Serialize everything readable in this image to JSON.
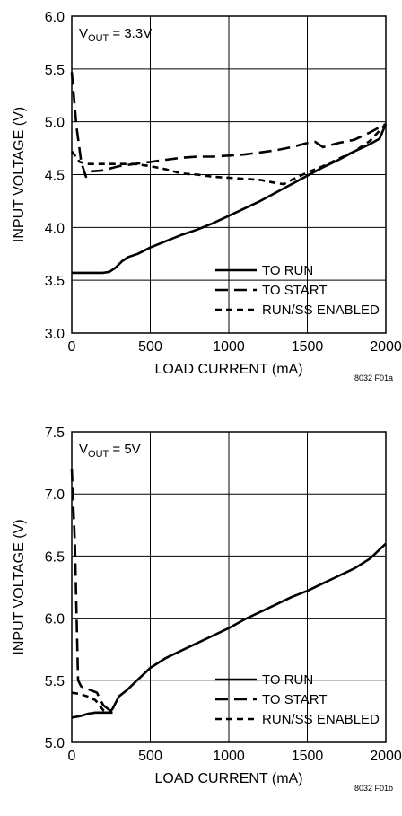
{
  "chart_data": [
    {
      "type": "line",
      "annotation": {
        "prefix": "V",
        "sub": "OUT",
        "suffix": " = 3.3V"
      },
      "xlabel": "LOAD CURRENT (mA)",
      "ylabel": "INPUT VOLTAGE (V)",
      "xlim": [
        0,
        2000
      ],
      "ylim": [
        3.0,
        6.0
      ],
      "x_ticks": [
        "0",
        "500",
        "1000",
        "1500",
        "2000"
      ],
      "y_ticks": [
        "3.0",
        "3.5",
        "4.0",
        "4.5",
        "5.0",
        "5.5",
        "6.0"
      ],
      "grid": true,
      "legend_placement": "bottom-right",
      "figure_id": "8032 F01a",
      "series": [
        {
          "name": "TO RUN",
          "style": "solid",
          "x": [
            0,
            100,
            200,
            240,
            280,
            320,
            360,
            420,
            500,
            600,
            700,
            800,
            900,
            1000,
            1100,
            1200,
            1300,
            1400,
            1500,
            1600,
            1700,
            1800,
            1900,
            1960,
            2000
          ],
          "y": [
            3.57,
            3.57,
            3.57,
            3.58,
            3.62,
            3.68,
            3.72,
            3.75,
            3.81,
            3.87,
            3.93,
            3.98,
            4.04,
            4.11,
            4.18,
            4.25,
            4.33,
            4.41,
            4.49,
            4.57,
            4.64,
            4.72,
            4.79,
            4.84,
            4.98
          ]
        },
        {
          "name": "TO START",
          "style": "long-dash",
          "x": [
            0,
            30,
            60,
            90,
            120,
            200,
            300,
            400,
            500,
            600,
            700,
            800,
            900,
            1000,
            1100,
            1200,
            1300,
            1400,
            1500,
            1550,
            1600,
            1700,
            1800,
            1900,
            2000
          ],
          "y": [
            5.47,
            4.95,
            4.62,
            4.48,
            4.53,
            4.54,
            4.58,
            4.6,
            4.62,
            4.64,
            4.66,
            4.67,
            4.67,
            4.68,
            4.69,
            4.71,
            4.73,
            4.76,
            4.8,
            4.81,
            4.76,
            4.8,
            4.83,
            4.9,
            4.98
          ]
        },
        {
          "name": "RUN/SS ENABLED",
          "style": "short-dash",
          "x": [
            0,
            50,
            100,
            200,
            300,
            400,
            500,
            600,
            700,
            800,
            900,
            1000,
            1100,
            1200,
            1300,
            1350,
            1400,
            1500,
            1600,
            1700,
            1800,
            1900,
            2000
          ],
          "y": [
            4.72,
            4.62,
            4.6,
            4.6,
            4.6,
            4.6,
            4.58,
            4.55,
            4.51,
            4.5,
            4.48,
            4.47,
            4.46,
            4.45,
            4.42,
            4.41,
            4.45,
            4.52,
            4.58,
            4.65,
            4.72,
            4.82,
            4.98
          ]
        }
      ]
    },
    {
      "type": "line",
      "annotation": {
        "prefix": "V",
        "sub": "OUT",
        "suffix": " = 5V"
      },
      "xlabel": "LOAD CURRENT (mA)",
      "ylabel": "INPUT VOLTAGE (V)",
      "xlim": [
        0,
        2000
      ],
      "ylim": [
        5.0,
        7.5
      ],
      "x_ticks": [
        "0",
        "500",
        "1000",
        "1500",
        "2000"
      ],
      "y_ticks": [
        "5.0",
        "5.5",
        "6.0",
        "6.5",
        "7.0",
        "7.5"
      ],
      "grid": true,
      "legend_placement": "bottom-right",
      "figure_id": "8032 F01b",
      "series": [
        {
          "name": "TO RUN",
          "style": "solid",
          "x": [
            0,
            50,
            100,
            150,
            200,
            240,
            260,
            300,
            350,
            400,
            500,
            600,
            700,
            800,
            900,
            1000,
            1100,
            1200,
            1300,
            1400,
            1500,
            1600,
            1700,
            1800,
            1900,
            2000
          ],
          "y": [
            5.2,
            5.21,
            5.23,
            5.24,
            5.24,
            5.24,
            5.27,
            5.37,
            5.42,
            5.48,
            5.6,
            5.68,
            5.74,
            5.8,
            5.86,
            5.92,
            5.99,
            6.05,
            6.11,
            6.17,
            6.22,
            6.28,
            6.34,
            6.4,
            6.48,
            6.6
          ]
        },
        {
          "name": "TO START",
          "style": "long-dash",
          "x": [
            0,
            20,
            40,
            60,
            100,
            160,
            200,
            240,
            260
          ],
          "y": [
            7.2,
            6.6,
            5.5,
            5.45,
            5.43,
            5.4,
            5.3,
            5.26,
            5.24
          ]
        },
        {
          "name": "RUN/SS ENABLED",
          "style": "short-dash",
          "x": [
            0,
            50,
            100,
            150,
            200,
            240,
            260
          ],
          "y": [
            5.4,
            5.39,
            5.37,
            5.34,
            5.26,
            5.24,
            5.24
          ]
        }
      ]
    }
  ]
}
